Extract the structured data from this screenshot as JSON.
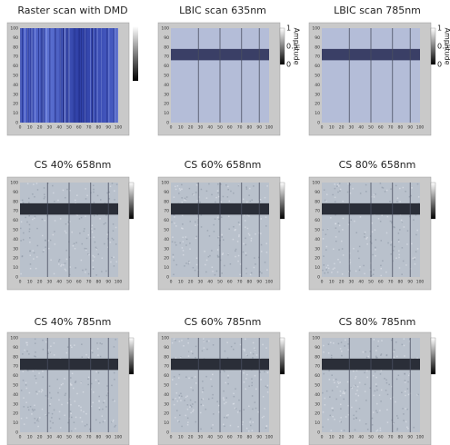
{
  "panels": [
    {
      "title": "Raster scan with DMD",
      "kind": "raster"
    },
    {
      "title": "LBIC scan 635nm",
      "kind": "lbic",
      "colorbar": {
        "label": "Amplitude",
        "ticks": [
          1,
          0.5,
          0
        ]
      }
    },
    {
      "title": "LBIC scan 785nm",
      "kind": "lbic",
      "colorbar": {
        "label": "Amplitude",
        "ticks": [
          1,
          0.5,
          0
        ]
      }
    },
    {
      "title": "CS 40% 658nm",
      "kind": "cs"
    },
    {
      "title": "CS 60% 658nm",
      "kind": "cs"
    },
    {
      "title": "CS 80% 658nm",
      "kind": "cs"
    },
    {
      "title": "CS 40% 785nm",
      "kind": "cs"
    },
    {
      "title": "CS 60% 785nm",
      "kind": "cs"
    },
    {
      "title": "CS 80% 785nm",
      "kind": "cs"
    }
  ],
  "axis_ticks": [
    0,
    10,
    20,
    30,
    40,
    50,
    60,
    70,
    80,
    90,
    100
  ]
}
